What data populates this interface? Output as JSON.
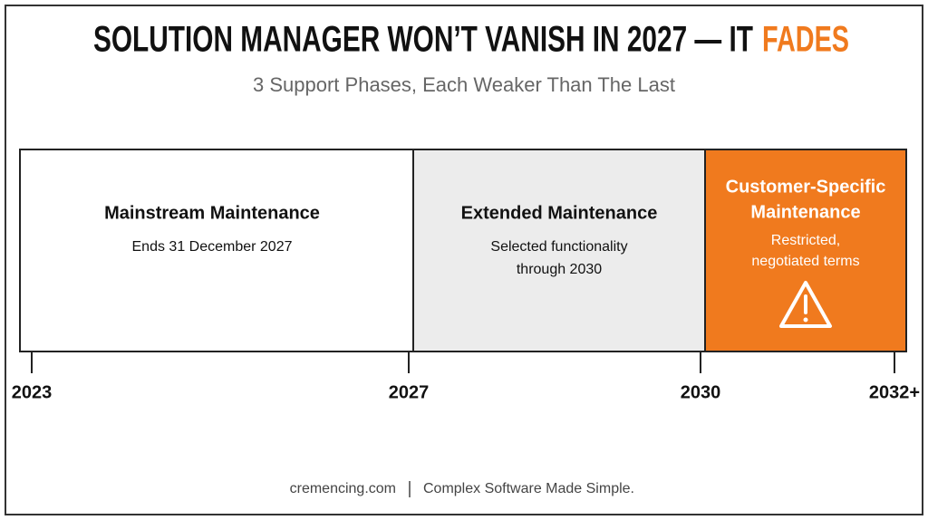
{
  "header": {
    "title": "SOLUTION MANAGER WON’T VANISH IN 2027 — IT",
    "title_highlight": "FADES",
    "subtitle": "3 Support Phases, Each Weaker Than The Last"
  },
  "phases": [
    {
      "title": [
        "Mainstream Maintenance"
      ],
      "description": [
        "Ends 31 December 2027"
      ]
    },
    {
      "title": [
        "Extended Maintenance"
      ],
      "description": [
        "Selected functionality",
        "through 2030"
      ]
    },
    {
      "title": [
        "Customer-Specific",
        "Maintenance"
      ],
      "description": [
        "Restricted,",
        "negotiated terms"
      ]
    }
  ],
  "timeline": {
    "ticks": [
      "2023",
      "2027",
      "2030",
      "2032+"
    ]
  },
  "footer": {
    "site": "cremencing.com",
    "tagline": "Complex Software Made Simple."
  }
}
